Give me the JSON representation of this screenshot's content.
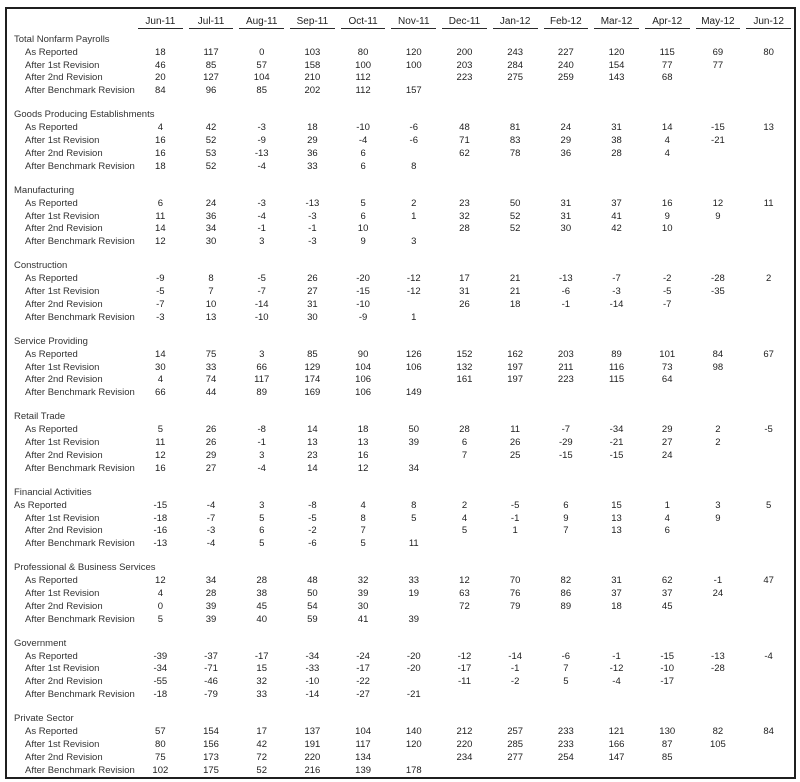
{
  "table": {
    "colors": {
      "border": "#1f1f1f",
      "text": "#2b2b2b"
    },
    "columns": [
      "Jun-11",
      "Jul-11",
      "Aug-11",
      "Sep-11",
      "Oct-11",
      "Nov-11",
      "Dec-11",
      "Jan-12",
      "Feb-12",
      "Mar-12",
      "Apr-12",
      "May-12",
      "Jun-12"
    ],
    "sections": [
      {
        "title": "Total Nonfarm Payrolls",
        "rows": [
          {
            "label": "As Reported",
            "indent": true,
            "values": [
              "18",
              "117",
              "0",
              "103",
              "80",
              "120",
              "200",
              "243",
              "227",
              "120",
              "115",
              "69",
              "80"
            ]
          },
          {
            "label": "After 1st Revision",
            "indent": true,
            "values": [
              "46",
              "85",
              "57",
              "158",
              "100",
              "100",
              "203",
              "284",
              "240",
              "154",
              "77",
              "77",
              ""
            ]
          },
          {
            "label": "After 2nd Revision",
            "indent": true,
            "values": [
              "20",
              "127",
              "104",
              "210",
              "112",
              "",
              "223",
              "275",
              "259",
              "143",
              "68",
              "",
              ""
            ]
          },
          {
            "label": "After Benchmark Revision",
            "indent": true,
            "values": [
              "84",
              "96",
              "85",
              "202",
              "112",
              "157",
              "",
              "",
              "",
              "",
              "",
              "",
              ""
            ]
          }
        ]
      },
      {
        "title": "Goods Producing Establishments",
        "rows": [
          {
            "label": "As Reported",
            "indent": true,
            "values": [
              "4",
              "42",
              "-3",
              "18",
              "-10",
              "-6",
              "48",
              "81",
              "24",
              "31",
              "14",
              "-15",
              "13"
            ]
          },
          {
            "label": "After 1st Revision",
            "indent": true,
            "values": [
              "16",
              "52",
              "-9",
              "29",
              "-4",
              "-6",
              "71",
              "83",
              "29",
              "38",
              "4",
              "-21",
              ""
            ]
          },
          {
            "label": "After 2nd Revision",
            "indent": true,
            "values": [
              "16",
              "53",
              "-13",
              "36",
              "6",
              "",
              "62",
              "78",
              "36",
              "28",
              "4",
              "",
              ""
            ]
          },
          {
            "label": "After Benchmark Revision",
            "indent": true,
            "values": [
              "18",
              "52",
              "-4",
              "33",
              "6",
              "8",
              "",
              "",
              "",
              "",
              "",
              "",
              ""
            ]
          }
        ]
      },
      {
        "title": "Manufacturing",
        "rows": [
          {
            "label": "As Reported",
            "indent": true,
            "values": [
              "6",
              "24",
              "-3",
              "-13",
              "5",
              "2",
              "23",
              "50",
              "31",
              "37",
              "16",
              "12",
              "11"
            ]
          },
          {
            "label": "After 1st Revision",
            "indent": true,
            "values": [
              "11",
              "36",
              "-4",
              "-3",
              "6",
              "1",
              "32",
              "52",
              "31",
              "41",
              "9",
              "9",
              ""
            ]
          },
          {
            "label": "After 2nd Revision",
            "indent": true,
            "values": [
              "14",
              "34",
              "-1",
              "-1",
              "10",
              "",
              "28",
              "52",
              "30",
              "42",
              "10",
              "",
              ""
            ]
          },
          {
            "label": "After Benchmark Revision",
            "indent": true,
            "values": [
              "12",
              "30",
              "3",
              "-3",
              "9",
              "3",
              "",
              "",
              "",
              "",
              "",
              "",
              ""
            ]
          }
        ]
      },
      {
        "title": "Construction",
        "rows": [
          {
            "label": "As Reported",
            "indent": true,
            "values": [
              "-9",
              "8",
              "-5",
              "26",
              "-20",
              "-12",
              "17",
              "21",
              "-13",
              "-7",
              "-2",
              "-28",
              "2"
            ]
          },
          {
            "label": "After 1st Revision",
            "indent": true,
            "values": [
              "-5",
              "7",
              "-7",
              "27",
              "-15",
              "-12",
              "31",
              "21",
              "-6",
              "-3",
              "-5",
              "-35",
              ""
            ]
          },
          {
            "label": "After 2nd Revision",
            "indent": true,
            "values": [
              "-7",
              "10",
              "-14",
              "31",
              "-10",
              "",
              "26",
              "18",
              "-1",
              "-14",
              "-7",
              "",
              ""
            ]
          },
          {
            "label": "After Benchmark Revision",
            "indent": true,
            "values": [
              "-3",
              "13",
              "-10",
              "30",
              "-9",
              "1",
              "",
              "",
              "",
              "",
              "",
              "",
              ""
            ]
          }
        ]
      },
      {
        "title": "Service Providing",
        "rows": [
          {
            "label": "As Reported",
            "indent": true,
            "values": [
              "14",
              "75",
              "3",
              "85",
              "90",
              "126",
              "152",
              "162",
              "203",
              "89",
              "101",
              "84",
              "67"
            ]
          },
          {
            "label": "After 1st Revision",
            "indent": true,
            "values": [
              "30",
              "33",
              "66",
              "129",
              "104",
              "106",
              "132",
              "197",
              "211",
              "116",
              "73",
              "98",
              ""
            ]
          },
          {
            "label": "After 2nd Revision",
            "indent": true,
            "values": [
              "4",
              "74",
              "117",
              "174",
              "106",
              "",
              "161",
              "197",
              "223",
              "115",
              "64",
              "",
              ""
            ]
          },
          {
            "label": "After Benchmark Revision",
            "indent": true,
            "values": [
              "66",
              "44",
              "89",
              "169",
              "106",
              "149",
              "",
              "",
              "",
              "",
              "",
              "",
              ""
            ]
          }
        ]
      },
      {
        "title": "Retail Trade",
        "rows": [
          {
            "label": "As Reported",
            "indent": true,
            "values": [
              "5",
              "26",
              "-8",
              "14",
              "18",
              "50",
              "28",
              "11",
              "-7",
              "-34",
              "29",
              "2",
              "-5"
            ]
          },
          {
            "label": "After 1st Revision",
            "indent": true,
            "values": [
              "11",
              "26",
              "-1",
              "13",
              "13",
              "39",
              "6",
              "26",
              "-29",
              "-21",
              "27",
              "2",
              ""
            ]
          },
          {
            "label": "After 2nd Revision",
            "indent": true,
            "values": [
              "12",
              "29",
              "3",
              "23",
              "16",
              "",
              "7",
              "25",
              "-15",
              "-15",
              "24",
              "",
              ""
            ]
          },
          {
            "label": "After Benchmark Revision",
            "indent": true,
            "values": [
              "16",
              "27",
              "-4",
              "14",
              "12",
              "34",
              "",
              "",
              "",
              "",
              "",
              "",
              ""
            ]
          }
        ]
      },
      {
        "title": "Financial Activities",
        "rows": [
          {
            "label": "As Reported",
            "indent": false,
            "values": [
              "-15",
              "-4",
              "3",
              "-8",
              "4",
              "8",
              "2",
              "-5",
              "6",
              "15",
              "1",
              "3",
              "5"
            ]
          },
          {
            "label": "After 1st Revision",
            "indent": true,
            "values": [
              "-18",
              "-7",
              "5",
              "-5",
              "8",
              "5",
              "4",
              "-1",
              "9",
              "13",
              "4",
              "9",
              ""
            ]
          },
          {
            "label": "After 2nd Revision",
            "indent": true,
            "values": [
              "-16",
              "-3",
              "6",
              "-2",
              "7",
              "",
              "5",
              "1",
              "7",
              "13",
              "6",
              "",
              ""
            ]
          },
          {
            "label": "After Benchmark Revision",
            "indent": true,
            "values": [
              "-13",
              "-4",
              "5",
              "-6",
              "5",
              "11",
              "",
              "",
              "",
              "",
              "",
              "",
              ""
            ]
          }
        ]
      },
      {
        "title": "Professional & Business Services",
        "rows": [
          {
            "label": "As Reported",
            "indent": true,
            "values": [
              "12",
              "34",
              "28",
              "48",
              "32",
              "33",
              "12",
              "70",
              "82",
              "31",
              "62",
              "-1",
              "47"
            ]
          },
          {
            "label": "After 1st Revision",
            "indent": true,
            "values": [
              "4",
              "28",
              "38",
              "50",
              "39",
              "19",
              "63",
              "76",
              "86",
              "37",
              "37",
              "24",
              ""
            ]
          },
          {
            "label": "After 2nd Revision",
            "indent": true,
            "values": [
              "0",
              "39",
              "45",
              "54",
              "30",
              "",
              "72",
              "79",
              "89",
              "18",
              "45",
              "",
              ""
            ]
          },
          {
            "label": "After Benchmark Revision",
            "indent": true,
            "values": [
              "5",
              "39",
              "40",
              "59",
              "41",
              "39",
              "",
              "",
              "",
              "",
              "",
              "",
              ""
            ]
          }
        ]
      },
      {
        "title": "Government",
        "rows": [
          {
            "label": "As Reported",
            "indent": true,
            "values": [
              "-39",
              "-37",
              "-17",
              "-34",
              "-24",
              "-20",
              "-12",
              "-14",
              "-6",
              "-1",
              "-15",
              "-13",
              "-4"
            ]
          },
          {
            "label": "After 1st Revision",
            "indent": true,
            "values": [
              "-34",
              "-71",
              "15",
              "-33",
              "-17",
              "-20",
              "-17",
              "-1",
              "7",
              "-12",
              "-10",
              "-28",
              ""
            ]
          },
          {
            "label": "After 2nd Revision",
            "indent": true,
            "values": [
              "-55",
              "-46",
              "32",
              "-10",
              "-22",
              "",
              "-11",
              "-2",
              "5",
              "-4",
              "-17",
              "",
              ""
            ]
          },
          {
            "label": "After Benchmark Revision",
            "indent": true,
            "values": [
              "-18",
              "-79",
              "33",
              "-14",
              "-27",
              "-21",
              "",
              "",
              "",
              "",
              "",
              "",
              ""
            ]
          }
        ]
      },
      {
        "title": "Private Sector",
        "rows": [
          {
            "label": "As Reported",
            "indent": true,
            "values": [
              "57",
              "154",
              "17",
              "137",
              "104",
              "140",
              "212",
              "257",
              "233",
              "121",
              "130",
              "82",
              "84"
            ]
          },
          {
            "label": "After 1st Revision",
            "indent": true,
            "values": [
              "80",
              "156",
              "42",
              "191",
              "117",
              "120",
              "220",
              "285",
              "233",
              "166",
              "87",
              "105",
              ""
            ]
          },
          {
            "label": "After 2nd Revision",
            "indent": true,
            "values": [
              "75",
              "173",
              "72",
              "220",
              "134",
              "",
              "234",
              "277",
              "254",
              "147",
              "85",
              "",
              ""
            ]
          },
          {
            "label": "After Benchmark Revision",
            "indent": true,
            "values": [
              "102",
              "175",
              "52",
              "216",
              "139",
              "178",
              "",
              "",
              "",
              "",
              "",
              "",
              ""
            ]
          }
        ]
      }
    ]
  }
}
